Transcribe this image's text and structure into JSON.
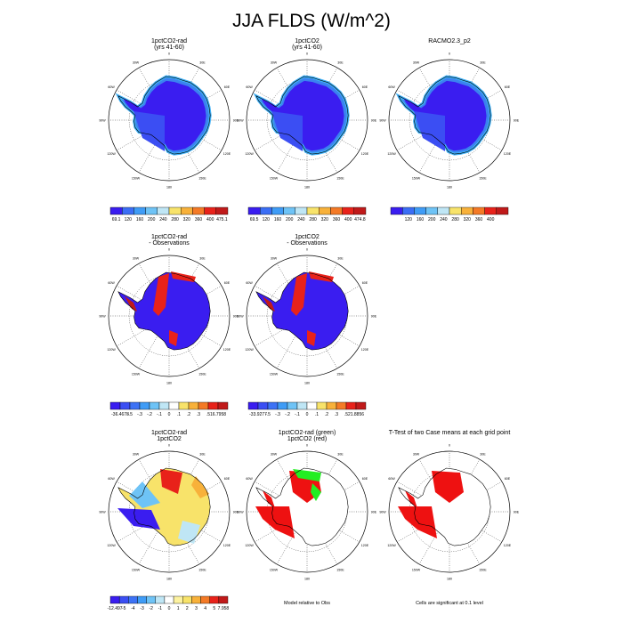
{
  "title": "JJA FLDS (W/m^2)",
  "chart_data": [
    {
      "type": "heatmap",
      "title": "1pctCO2-rad",
      "subtitle": "(yrs 41-60)",
      "colorbar": {
        "colors": [
          "#3a1df0",
          "#3b6ef5",
          "#3f9cf6",
          "#6ec3f6",
          "#bfe6f5",
          "#f8e36a",
          "#f8b13a",
          "#f47a26",
          "#e8221a",
          "#c01a1a"
        ],
        "labels": [
          "69.1",
          "120",
          "160",
          "200",
          "240",
          "280",
          "320",
          "360",
          "400",
          "475.1"
        ]
      },
      "mode": "abs"
    },
    {
      "type": "heatmap",
      "title": "1pctCO2",
      "subtitle": "(yrs 41-60)",
      "colorbar": {
        "colors": [
          "#3a1df0",
          "#3b6ef5",
          "#3f9cf6",
          "#6ec3f6",
          "#bfe6f5",
          "#f8e36a",
          "#f8b13a",
          "#f47a26",
          "#e8221a",
          "#c01a1a"
        ],
        "labels": [
          "69.5",
          "120",
          "160",
          "200",
          "240",
          "280",
          "320",
          "360",
          "400",
          "474.8"
        ]
      },
      "mode": "abs"
    },
    {
      "type": "heatmap",
      "title": "RACMO2.3_p2",
      "subtitle": "",
      "colorbar": {
        "colors": [
          "#3a1df0",
          "#3b6ef5",
          "#3f9cf6",
          "#6ec3f6",
          "#bfe6f5",
          "#f8e36a",
          "#f8b13a",
          "#f47a26",
          "#e8221a",
          "#c01a1a"
        ],
        "labels": [
          "120",
          "160",
          "200",
          "240",
          "280",
          "320",
          "360",
          "400"
        ]
      },
      "mode": "abs"
    },
    {
      "type": "heatmap",
      "title": "1pctCO2-rad",
      "subtitle": "- Observations",
      "colorbar": {
        "colors": [
          "#3a1df0",
          "#3b4ef3",
          "#3d72f5",
          "#3f9cf6",
          "#6ec3f6",
          "#bfe6f5",
          "#ffffff",
          "#f8e36a",
          "#f8b13a",
          "#f47a26",
          "#e8221a",
          "#c01a1a"
        ],
        "labels": [
          "-36.4678",
          "-.5",
          "-.3",
          "-.2",
          "-.1",
          "0",
          ".1",
          ".2",
          ".3",
          ".5",
          "16.7958"
        ]
      },
      "mode": "diffobs"
    },
    {
      "type": "heatmap",
      "title": "1pctCO2",
      "subtitle": "- Observations",
      "colorbar": {
        "colors": [
          "#3a1df0",
          "#3b4ef3",
          "#3d72f5",
          "#3f9cf6",
          "#6ec3f6",
          "#bfe6f5",
          "#ffffff",
          "#f8e36a",
          "#f8b13a",
          "#f47a26",
          "#e8221a",
          "#c01a1a"
        ],
        "labels": [
          "-33.9277",
          "-.5",
          "-.3",
          "-.2",
          "-.1",
          "0",
          ".1",
          ".2",
          ".3",
          ".5",
          "21.8856"
        ]
      },
      "mode": "diffobs"
    },
    {
      "type": "heatmap",
      "title": "1pctCO2-rad",
      "subtitle": "1pctCO2",
      "colorbar": {
        "colors": [
          "#3a1df0",
          "#3b4ef3",
          "#3d72f5",
          "#3f9cf6",
          "#6ec3f6",
          "#bfe6f5",
          "#ffffff",
          "#fdf2a0",
          "#f8e36a",
          "#f8b13a",
          "#f47a26",
          "#e8221a",
          "#c01a1a"
        ],
        "labels": [
          "-12.497",
          "-5",
          "-4",
          "-3",
          "-2",
          "-1",
          "0",
          "1",
          "2",
          "3",
          "4",
          "5",
          "7.958"
        ]
      },
      "mode": "diff"
    },
    {
      "type": "heatmap",
      "title": "1pctCO2-rad (green)",
      "subtitle": "1pctCO2 (red)",
      "footer": "Model relative to Obs",
      "mode": "rg"
    },
    {
      "type": "heatmap",
      "title": "T-Test of two Case means at each grid point",
      "subtitle": "",
      "footer": "Cells are significant at 0.1 level",
      "mode": "ttest"
    }
  ],
  "map": {
    "lon_labels": [
      "0",
      "30E",
      "60E",
      "90E",
      "120E",
      "150E",
      "180",
      "150W",
      "120W",
      "90W",
      "60W",
      "30W"
    ]
  }
}
